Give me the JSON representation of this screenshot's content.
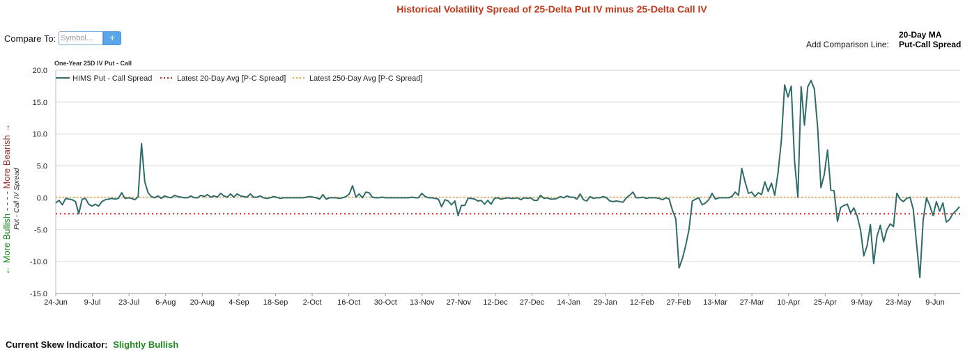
{
  "page_title": "Historical Volatility Spread of 25-Delta Put IV minus 25-Delta Call IV",
  "compare": {
    "label": "Compare To:",
    "placeholder": "Symbol...",
    "add_button": "+"
  },
  "comparison_line": {
    "label": "Add Comparison Line:",
    "options": [
      "20-Day MA",
      "Put-Call Spread"
    ]
  },
  "side_labels": {
    "bullish": "← More Bullish",
    "dashes": "- - - -",
    "bearish": "More Bearish →",
    "axis_title": "Put - Call IV Spread"
  },
  "indicator": {
    "label": "Current Skew Indicator:",
    "value": "Slightly Bullish",
    "value_color": "#1e8a1e"
  },
  "colors": {
    "series": "#2f6b68",
    "avg20": "#cc2222",
    "avg250": "#e8a33a",
    "grid": "#d6d6d6"
  },
  "chart_data": {
    "type": "line",
    "title": "One-Year 25D IV Put - Call",
    "ylim": [
      -15,
      20
    ],
    "yticks": [
      "20.0",
      "15.0",
      "10.0",
      "5.0",
      "0.0",
      "-5.0",
      "-10.0",
      "-15.0"
    ],
    "xticks": [
      "24-Jun",
      "9-Jul",
      "23-Jul",
      "6-Aug",
      "20-Aug",
      "4-Sep",
      "18-Sep",
      "2-Oct",
      "16-Oct",
      "30-Oct",
      "13-Nov",
      "27-Nov",
      "12-Dec",
      "27-Dec",
      "14-Jan",
      "29-Jan",
      "12-Feb",
      "27-Feb",
      "13-Mar",
      "27-Mar",
      "10-Apr",
      "25-Apr",
      "9-May",
      "23-May",
      "9-Jun"
    ],
    "grid": true,
    "legend_position": "top-left",
    "series": [
      {
        "name": "HIMS Put - Call Spread",
        "style": "solid",
        "values": [
          -0.8,
          -0.4,
          -1.1,
          -0.1,
          -0.2,
          -0.3,
          -0.6,
          -2.5,
          -0.2,
          -0.1,
          -1.0,
          -1.3,
          -1.0,
          -1.3,
          -0.6,
          -0.3,
          -0.2,
          -0.1,
          -0.2,
          -0.1,
          0.8,
          -0.1,
          0.0,
          -0.1,
          -0.3,
          0.2,
          8.5,
          2.5,
          0.8,
          0.2,
          0.0,
          0.3,
          -0.1,
          0.3,
          0.1,
          0.0,
          0.4,
          0.2,
          0.1,
          0.0,
          0.0,
          0.3,
          0.0,
          0.0,
          0.4,
          0.2,
          0.5,
          0.1,
          0.3,
          0.1,
          0.7,
          0.3,
          0.1,
          0.6,
          0.1,
          0.6,
          0.3,
          0.2,
          0.1,
          0.6,
          0.1,
          0.1,
          0.3,
          0.0,
          -0.1,
          0.0,
          0.2,
          0.1,
          -0.1,
          0.0,
          0.0,
          0.0,
          0.0,
          0.0,
          0.0,
          0.0,
          0.1,
          0.2,
          0.1,
          0.0,
          -0.2,
          0.5,
          -0.2,
          0.0,
          0.0,
          0.0,
          -0.1,
          0.0,
          0.2,
          0.6,
          1.9,
          0.1,
          0.6,
          0.0,
          0.9,
          0.8,
          0.1,
          0.0,
          0.0,
          0.1,
          0.0,
          0.0,
          0.0,
          0.0,
          0.0,
          0.0,
          0.0,
          0.0,
          0.1,
          0.0,
          0.0,
          0.7,
          0.2,
          0.0,
          0.0,
          -0.1,
          -0.2,
          -1.4,
          -0.3,
          -0.5,
          -1.1,
          -0.5,
          -2.8,
          -1.2,
          -1.2,
          -0.1,
          -0.1,
          -0.2,
          -0.5,
          -0.4,
          -1.0,
          -0.4,
          -1.0,
          -0.1,
          0.0,
          -0.2,
          -0.1,
          0.0,
          -0.1,
          -0.1,
          0.0,
          -0.3,
          0.0,
          -0.1,
          0.0,
          -0.4,
          -0.4,
          0.4,
          -0.1,
          0.0,
          -0.2,
          -0.2,
          -0.1,
          0.2,
          0.0,
          0.3,
          0.1,
          0.1,
          -0.2,
          0.6,
          -0.3,
          -0.5,
          0.2,
          -0.1,
          0.0,
          0.0,
          0.2,
          0.0,
          -0.5,
          -0.6,
          -0.5,
          -0.6,
          -0.7,
          0.0,
          0.4,
          0.9,
          0.0,
          0.0,
          0.1,
          -0.1,
          0.0,
          0.0,
          0.0,
          -0.1,
          -0.3,
          0.0,
          -0.2,
          -2.0,
          -3.3,
          -11.0,
          -9.5,
          -7.5,
          -5.0,
          -0.5,
          -0.2,
          0.0,
          -1.1,
          -0.8,
          -0.3,
          0.7,
          -0.2,
          0.0,
          0.0,
          0.0,
          0.0,
          0.2,
          0.9,
          0.4,
          4.6,
          2.5,
          0.7,
          0.9,
          0.2,
          0.8,
          0.5,
          2.5,
          1.0,
          2.3,
          0.4,
          4.0,
          9.0,
          17.7,
          15.8,
          17.5,
          5.8,
          0.1,
          17.4,
          11.4,
          17.4,
          18.4,
          17.1,
          11.0,
          1.6,
          3.6,
          7.5,
          1.2,
          1.1,
          -3.7,
          -1.5,
          -1.2,
          -1.0,
          -2.4,
          -1.6,
          -2.9,
          -5.0,
          -9.1,
          -7.5,
          -4.2,
          -10.3,
          -6.0,
          -4.3,
          -6.9,
          -5.0,
          -4.1,
          -4.5,
          0.7,
          -0.2,
          -0.6,
          -0.1,
          0.1,
          -1.8,
          -7.3,
          -12.5,
          -3.5,
          0.0,
          -1.2,
          -2.8,
          -0.6,
          -2.1,
          -0.8,
          -3.8,
          -3.4,
          -2.5,
          -2.0,
          -1.4
        ]
      },
      {
        "name": "Latest 20-Day Avg [P-C Spread]",
        "style": "dotted",
        "value": -2.5
      },
      {
        "name": "Latest 250-Day Avg [P-C Spread]",
        "style": "dotted",
        "value": 0.1
      }
    ]
  }
}
